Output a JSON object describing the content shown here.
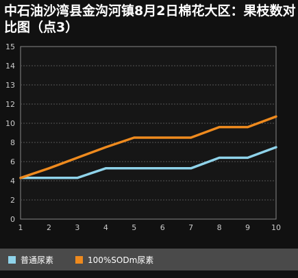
{
  "title": "中石油沙湾县金沟河镇8月2日棉花大区：果枝数对比图（点3）",
  "colors": {
    "background": "#111111",
    "plot_border": "#888888",
    "grid": "#555555",
    "tick_text": "#cccccc",
    "legend_bg": "#4a4a4a",
    "series1": "#8fd3ea",
    "series2": "#ee8a1e"
  },
  "legend": [
    {
      "label": "普通尿素",
      "color": "#8fd3ea"
    },
    {
      "label": "100%SODm尿素",
      "color": "#ee8a1e"
    }
  ],
  "chart_data": {
    "type": "line",
    "title": "中石油沙湾县金沟河镇8月2日棉花大区：果枝数对比图（点3）",
    "xlabel": "",
    "ylabel": "",
    "x": [
      1,
      2,
      3,
      4,
      5,
      6,
      7,
      8,
      9,
      10
    ],
    "x_ticks": [
      "1",
      "2",
      "3",
      "4",
      "5",
      "6",
      "7",
      "8",
      "9",
      "10"
    ],
    "y_ticks": [
      "0",
      "2",
      "4",
      "6",
      "8",
      "10",
      "12",
      "13",
      "14",
      "15"
    ],
    "y_tick_values": [
      0,
      2,
      4,
      6,
      8,
      10,
      12,
      13,
      14,
      15
    ],
    "ylim": [
      0,
      15
    ],
    "grid": true,
    "legend_position": "bottom",
    "series": [
      {
        "name": "普通尿素",
        "values": [
          4.3,
          4.3,
          4.3,
          5.3,
          5.3,
          5.3,
          5.3,
          6.4,
          6.4,
          7.5
        ]
      },
      {
        "name": "100%SODm尿素",
        "values": [
          4.3,
          5.3,
          6.4,
          7.5,
          8.5,
          8.5,
          8.5,
          9.6,
          9.6,
          10.7
        ]
      }
    ]
  }
}
